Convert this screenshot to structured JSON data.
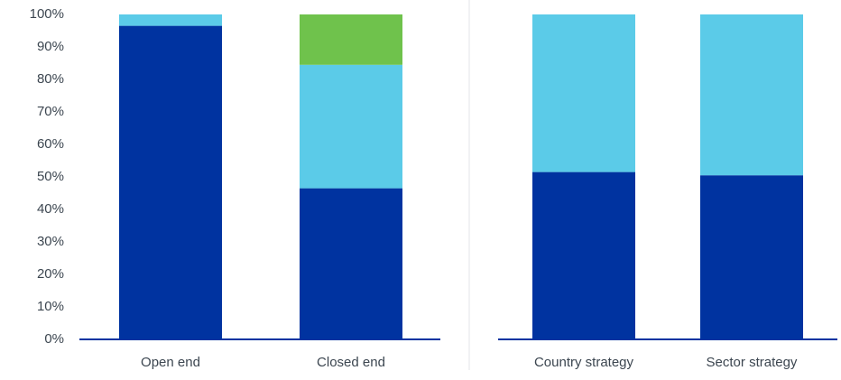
{
  "chart_data": {
    "type": "bar",
    "stacked": true,
    "grid": false,
    "legend": "none",
    "y_axis": {
      "ylim": [
        0,
        100
      ],
      "ticks": [
        0,
        10,
        20,
        30,
        40,
        50,
        60,
        70,
        80,
        90,
        100
      ],
      "tick_suffix": "%"
    },
    "panels": [
      {
        "categories": [
          "Open end",
          "Closed end"
        ],
        "series": [
          {
            "color": "#0033a0",
            "values": [
              96.5,
              46.5
            ]
          },
          {
            "color": "#5bcbe8",
            "values": [
              3.5,
              38
            ]
          },
          {
            "color": "#6fc24c",
            "values": [
              0,
              15.5
            ]
          }
        ]
      },
      {
        "categories": [
          "Country strategy",
          "Sector strategy"
        ],
        "series": [
          {
            "color": "#0033a0",
            "values": [
              51.5,
              50.5
            ]
          },
          {
            "color": "#5bcbe8",
            "values": [
              48.5,
              49.5
            ]
          }
        ]
      }
    ]
  }
}
